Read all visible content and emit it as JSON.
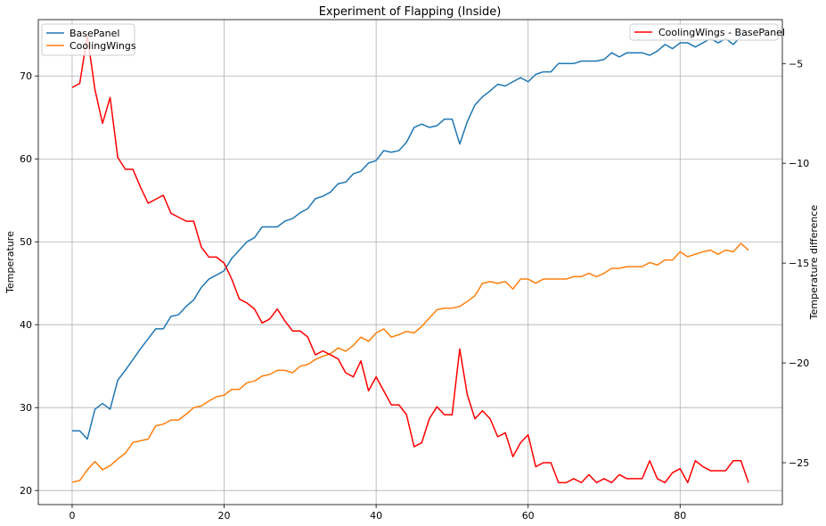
{
  "chart_data": {
    "type": "line",
    "title": "Experiment of Flapping (Inside)",
    "xlabel": "",
    "ylabel": "Temperature",
    "y2label": "Temperature difference",
    "xlim": [
      -4.45,
      93.45
    ],
    "ylim": [
      18.3,
      76.8
    ],
    "y2lim": [
      -27.1,
      -2.8
    ],
    "xticks": [
      0,
      20,
      40,
      60,
      80
    ],
    "yticks": [
      20,
      30,
      40,
      50,
      60,
      70
    ],
    "y2ticks": [
      -25,
      -20,
      -15,
      -10,
      -5
    ],
    "grid": true,
    "legend_left_position": "upper-left",
    "legend_right_position": "upper-right",
    "series": [
      {
        "name": "BasePanel",
        "color": "#1f77b4",
        "axis": "left",
        "values": [
          27.2,
          27.2,
          26.2,
          29.8,
          30.5,
          29.8,
          33.3,
          34.5,
          35.8,
          37.1,
          38.3,
          39.5,
          39.5,
          41.0,
          41.2,
          42.2,
          43.0,
          44.5,
          45.5,
          46.0,
          46.5,
          48.0,
          49.0,
          50.0,
          50.5,
          51.8,
          51.8,
          51.8,
          52.5,
          52.8,
          53.5,
          54.0,
          55.2,
          55.5,
          56.0,
          57.0,
          57.2,
          58.2,
          58.5,
          59.5,
          59.8,
          61.0,
          60.8,
          61.0,
          62.0,
          63.8,
          64.2,
          63.8,
          64.0,
          64.8,
          64.8,
          61.8,
          64.5,
          66.5,
          67.5,
          68.2,
          69.0,
          68.8,
          69.3,
          69.8,
          69.3,
          70.2,
          70.5,
          70.5,
          71.5,
          71.5,
          71.5,
          71.8,
          71.8,
          71.8,
          72.0,
          72.8,
          72.3,
          72.8,
          72.8,
          72.8,
          72.5,
          73.0,
          73.8,
          73.3,
          74.0,
          74.0,
          73.5,
          74.0,
          74.5,
          74.0,
          74.5,
          73.8,
          74.8,
          75.0
        ]
      },
      {
        "name": "CoolingWings",
        "color": "#ff7f0e",
        "axis": "left",
        "values": [
          21.0,
          21.2,
          22.5,
          23.5,
          22.5,
          23.0,
          23.8,
          24.5,
          25.8,
          26.0,
          26.2,
          27.8,
          28.0,
          28.5,
          28.5,
          29.2,
          30.0,
          30.2,
          30.8,
          31.3,
          31.5,
          32.2,
          32.2,
          33.0,
          33.2,
          33.8,
          34.0,
          34.5,
          34.5,
          34.2,
          35.0,
          35.2,
          35.8,
          36.2,
          36.5,
          37.2,
          36.8,
          37.5,
          38.5,
          38.0,
          39.0,
          39.5,
          38.5,
          38.8,
          39.2,
          39.0,
          39.8,
          40.8,
          41.8,
          42.0,
          42.0,
          42.2,
          42.8,
          43.5,
          45.0,
          45.2,
          45.0,
          45.2,
          44.3,
          45.5,
          45.5,
          45.0,
          45.5,
          45.5,
          45.5,
          45.5,
          45.8,
          45.8,
          46.2,
          45.8,
          46.2,
          46.8,
          46.8,
          47.0,
          47.0,
          47.0,
          47.5,
          47.2,
          47.8,
          47.8,
          48.8,
          48.2,
          48.5,
          48.8,
          49.0,
          48.5,
          49.0,
          48.8,
          49.8,
          49.0
        ]
      },
      {
        "name": "CoolingWings - BasePanel",
        "color": "#ff0000",
        "axis": "right",
        "values": [
          -6.2,
          -6.0,
          -3.6,
          -6.3,
          -8.0,
          -6.7,
          -9.7,
          -10.3,
          -10.3,
          -11.2,
          -12.0,
          -11.8,
          -11.6,
          -12.5,
          -12.7,
          -12.9,
          -12.9,
          -14.2,
          -14.7,
          -14.7,
          -15.0,
          -15.8,
          -16.8,
          -17.0,
          -17.3,
          -18.0,
          -17.8,
          -17.3,
          -17.9,
          -18.4,
          -18.4,
          -18.7,
          -19.6,
          -19.4,
          -19.6,
          -19.8,
          -20.5,
          -20.7,
          -19.9,
          -21.4,
          -20.7,
          -21.4,
          -22.1,
          -22.1,
          -22.6,
          -24.2,
          -24.0,
          -22.8,
          -22.2,
          -22.6,
          -22.6,
          -19.3,
          -21.6,
          -22.8,
          -22.4,
          -22.8,
          -23.7,
          -23.5,
          -24.7,
          -24.0,
          -23.6,
          -25.2,
          -25.0,
          -25.0,
          -26.0,
          -26.0,
          -25.8,
          -26.0,
          -25.6,
          -26.0,
          -25.8,
          -26.0,
          -25.6,
          -25.8,
          -25.8,
          -25.8,
          -24.9,
          -25.8,
          -26.0,
          -25.5,
          -25.3,
          -26.0,
          -24.9,
          -25.2,
          -25.4,
          -25.4,
          -25.4,
          -24.9,
          -24.9,
          -26.0
        ]
      }
    ]
  }
}
